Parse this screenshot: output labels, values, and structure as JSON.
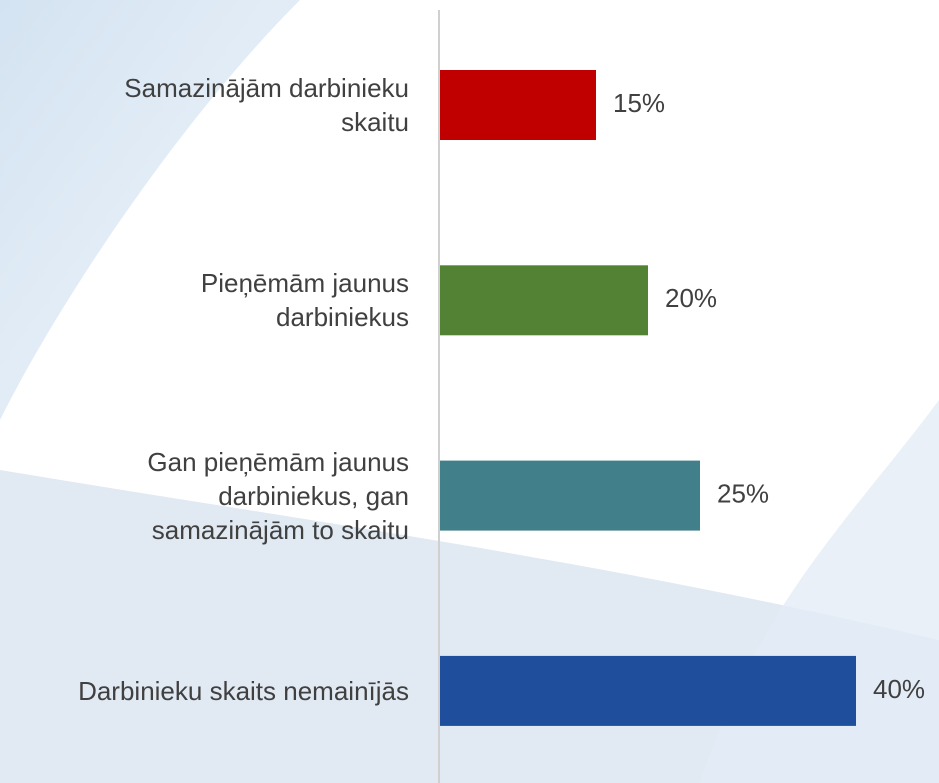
{
  "chart_data": {
    "type": "bar",
    "orientation": "horizontal",
    "categories": [
      "Samazinājām darbinieku\nskaitu",
      "Pieņēmām jaunus\ndarbiniekus",
      "Gan pieņēmām jaunus\ndarbiniekus, gan\nsamazinājām to skaitu",
      "Darbinieku skaits nemainījās"
    ],
    "values": [
      15,
      20,
      25,
      40
    ],
    "value_labels": [
      "15%",
      "20%",
      "25%",
      "40%"
    ],
    "colors": [
      "#c00000",
      "#548235",
      "#41808a",
      "#1f4e9c"
    ]
  }
}
